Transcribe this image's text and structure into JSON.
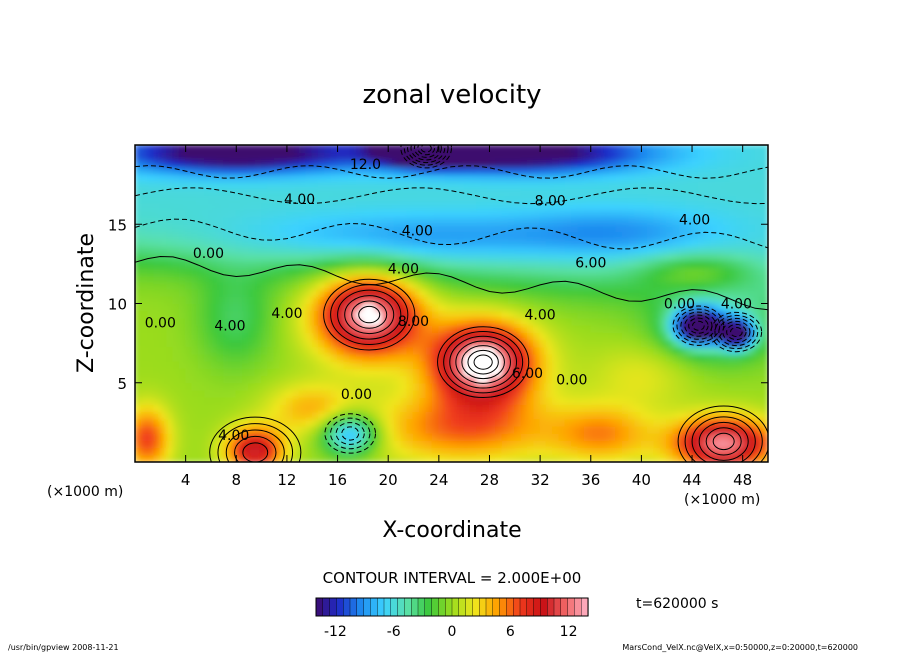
{
  "chart_data": {
    "type": "heatmap",
    "title": "zonal velocity",
    "xlabel": "X-coordinate",
    "ylabel": "Z-coordinate",
    "x_unit_label": "(×1000 m)",
    "z_unit_label": "(×1000 m)",
    "xlim": [
      0,
      50
    ],
    "ylim": [
      0,
      20
    ],
    "x_ticks": [
      4,
      8,
      12,
      16,
      20,
      24,
      28,
      32,
      36,
      40,
      44,
      48
    ],
    "y_ticks": [
      5,
      10,
      15
    ],
    "colorbar": {
      "range": [
        -14,
        14
      ],
      "ticks": [
        -12,
        -6,
        0,
        6,
        12
      ],
      "stops": [
        "#3c0a6e",
        "#1e2dc8",
        "#1e8cf0",
        "#3cd2ff",
        "#5ae1aa",
        "#3cc83c",
        "#9bdc1e",
        "#f0e61e",
        "#ffa000",
        "#f03c1e",
        "#c80f14",
        "#f06464",
        "#ffb4c8"
      ]
    },
    "contour_interval_text": "CONTOUR INTERVAL = 2.000E+00",
    "time_text": "t=620000 s",
    "contour_labels": [
      {
        "text": "12.0",
        "x": 18.2,
        "z": 18.8
      },
      {
        "text": "4.00",
        "x": 13.0,
        "z": 16.6
      },
      {
        "text": "8.00",
        "x": 32.8,
        "z": 16.5
      },
      {
        "text": "4.00",
        "x": 44.2,
        "z": 15.3
      },
      {
        "text": "4.00",
        "x": 22.3,
        "z": 14.6
      },
      {
        "text": "0.00",
        "x": 5.8,
        "z": 13.2
      },
      {
        "text": "4.00",
        "x": 21.2,
        "z": 12.2
      },
      {
        "text": "6.00",
        "x": 36.0,
        "z": 12.6
      },
      {
        "text": "4.00",
        "x": 12.0,
        "z": 9.4
      },
      {
        "text": "4.00",
        "x": 7.5,
        "z": 8.6
      },
      {
        "text": "0.00",
        "x": 2.0,
        "z": 8.8
      },
      {
        "text": "8.00",
        "x": 22.0,
        "z": 8.9
      },
      {
        "text": "4.00",
        "x": 32.0,
        "z": 9.3
      },
      {
        "text": "0.00",
        "x": 43.0,
        "z": 10.0
      },
      {
        "text": "4.00",
        "x": 47.5,
        "z": 10.0
      },
      {
        "text": "0.00",
        "x": 34.5,
        "z": 5.2
      },
      {
        "text": "6.00",
        "x": 31.0,
        "z": 5.6
      },
      {
        "text": "0.00",
        "x": 17.5,
        "z": 4.3
      },
      {
        "text": "4.00",
        "x": 7.8,
        "z": 1.7
      }
    ],
    "features": [
      {
        "kind": "max",
        "x": 18.5,
        "z": 9.3,
        "value": 13
      },
      {
        "kind": "max",
        "x": 27.5,
        "z": 6.3,
        "value": 14
      },
      {
        "kind": "max",
        "x": 9.5,
        "z": 0.6,
        "value": 10
      },
      {
        "kind": "max",
        "x": 46.5,
        "z": 1.3,
        "value": 13
      },
      {
        "kind": "min",
        "x": 23.0,
        "z": 19.8,
        "value": -14
      },
      {
        "kind": "min",
        "x": 44.5,
        "z": 8.6,
        "value": -13
      },
      {
        "kind": "min",
        "x": 47.5,
        "z": 8.2,
        "value": -12
      },
      {
        "kind": "min",
        "x": 17.0,
        "z": 1.8,
        "value": -8
      }
    ]
  },
  "footer": {
    "left": "/usr/bin/gpview  2008-11-21",
    "right": "MarsCond_VelX.nc@VelX,x=0:50000,z=0:20000,t=620000"
  }
}
